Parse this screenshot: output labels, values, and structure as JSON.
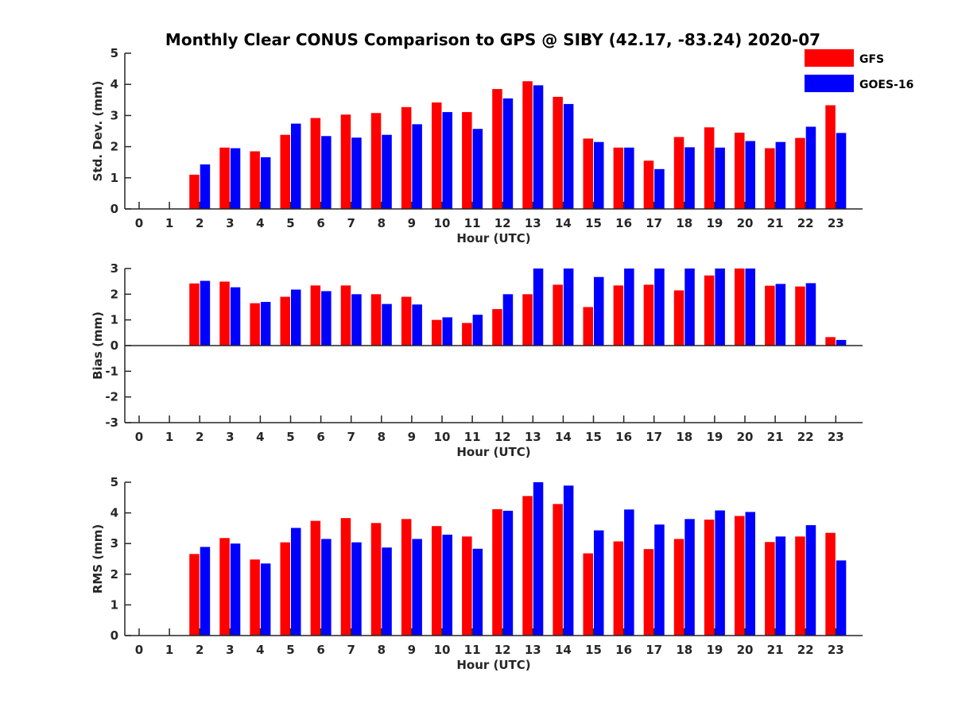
{
  "title": "Monthly Clear CONUS Comparison to GPS @ SIBY (42.17, -83.24) 2020-07",
  "legend": [
    {
      "name": "GFS",
      "color": "#ff0000"
    },
    {
      "name": "GOES-16",
      "color": "#0000ff"
    }
  ],
  "chart_data": [
    {
      "type": "bar",
      "id": "std",
      "xlabel": "Hour (UTC)",
      "ylabel": "Std. Dev. (mm)",
      "ylim": [
        0,
        5
      ],
      "yticks": [
        0,
        1,
        2,
        3,
        4,
        5
      ],
      "categories": [
        "0",
        "1",
        "2",
        "3",
        "4",
        "5",
        "6",
        "7",
        "8",
        "9",
        "10",
        "11",
        "12",
        "13",
        "14",
        "15",
        "16",
        "17",
        "18",
        "19",
        "20",
        "21",
        "22",
        "23"
      ],
      "series": [
        {
          "name": "GFS",
          "color": "#ff0000",
          "values": [
            null,
            null,
            1.1,
            1.97,
            1.85,
            2.38,
            2.92,
            3.03,
            3.08,
            3.27,
            3.42,
            3.11,
            3.85,
            4.1,
            3.6,
            2.26,
            1.97,
            1.55,
            2.31,
            2.62,
            2.45,
            1.95,
            2.28,
            3.33
          ]
        },
        {
          "name": "GOES-16",
          "color": "#0000ff",
          "values": [
            null,
            null,
            1.43,
            1.95,
            1.66,
            2.74,
            2.34,
            2.29,
            2.38,
            2.72,
            3.11,
            2.57,
            3.55,
            3.97,
            3.37,
            2.15,
            1.97,
            1.28,
            1.98,
            1.97,
            2.18,
            2.15,
            2.64,
            2.44
          ]
        }
      ]
    },
    {
      "type": "bar",
      "id": "bias",
      "xlabel": "Hour (UTC)",
      "ylabel": "Bias (mm)",
      "ylim": [
        -3,
        3
      ],
      "yticks": [
        -3,
        -2,
        -1,
        0,
        1,
        2,
        3
      ],
      "categories": [
        "0",
        "1",
        "2",
        "3",
        "4",
        "5",
        "6",
        "7",
        "8",
        "9",
        "10",
        "11",
        "12",
        "13",
        "14",
        "15",
        "16",
        "17",
        "18",
        "19",
        "20",
        "21",
        "22",
        "23"
      ],
      "series": [
        {
          "name": "GFS",
          "color": "#ff0000",
          "values": [
            null,
            null,
            2.42,
            2.49,
            1.65,
            1.9,
            2.34,
            2.34,
            2.0,
            1.9,
            1.0,
            0.88,
            1.42,
            2.0,
            2.37,
            1.5,
            2.34,
            2.37,
            2.15,
            2.73,
            3.0,
            2.33,
            2.3,
            0.33
          ]
        },
        {
          "name": "GOES-16",
          "color": "#0000ff",
          "values": [
            null,
            null,
            2.52,
            2.27,
            1.7,
            2.18,
            2.12,
            2.0,
            1.62,
            1.6,
            1.1,
            1.2,
            2.0,
            3.0,
            3.0,
            2.67,
            3.0,
            3.0,
            3.0,
            3.0,
            3.0,
            2.4,
            2.43,
            0.22
          ]
        }
      ]
    },
    {
      "type": "bar",
      "id": "rms",
      "xlabel": "Hour (UTC)",
      "ylabel": "RMS (mm)",
      "ylim": [
        0,
        5
      ],
      "yticks": [
        0,
        1,
        2,
        3,
        4,
        5
      ],
      "categories": [
        "0",
        "1",
        "2",
        "3",
        "4",
        "5",
        "6",
        "7",
        "8",
        "9",
        "10",
        "11",
        "12",
        "13",
        "14",
        "15",
        "16",
        "17",
        "18",
        "19",
        "20",
        "21",
        "22",
        "23"
      ],
      "series": [
        {
          "name": "GFS",
          "color": "#ff0000",
          "values": [
            null,
            null,
            2.66,
            3.18,
            2.48,
            3.04,
            3.74,
            3.83,
            3.67,
            3.8,
            3.57,
            3.23,
            4.12,
            4.55,
            4.29,
            2.68,
            3.07,
            2.82,
            3.15,
            3.78,
            3.9,
            3.05,
            3.23,
            3.35
          ]
        },
        {
          "name": "GOES-16",
          "color": "#0000ff",
          "values": [
            null,
            null,
            2.89,
            3.0,
            2.35,
            3.51,
            3.15,
            3.04,
            2.87,
            3.15,
            3.29,
            2.83,
            4.07,
            5.0,
            4.89,
            3.43,
            4.11,
            3.62,
            3.8,
            4.08,
            4.03,
            3.23,
            3.6,
            2.45
          ]
        }
      ]
    }
  ]
}
